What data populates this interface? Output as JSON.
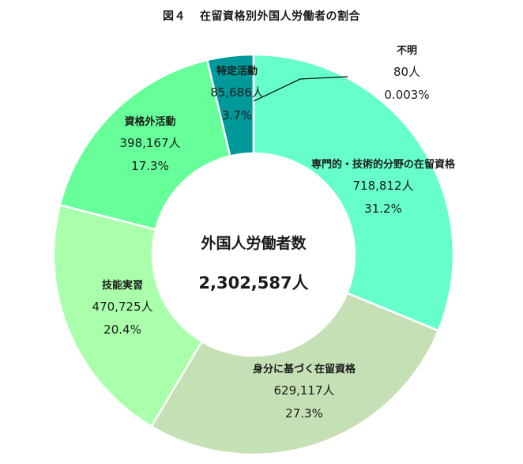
{
  "title": {
    "fig": "図４",
    "text": "在留資格別外国人労働者の割合"
  },
  "center": {
    "label": "外国人労働者数",
    "total": "2,302,587人"
  },
  "segments": [
    {
      "name": "専門的・技術的分野の在留資格",
      "count": "718,812人",
      "pct": "31.2%",
      "color": "#66FFCC"
    },
    {
      "name": "身分に基づく在留資格",
      "count": "629,117人",
      "pct": "27.3%",
      "color": "#C5E0B4"
    },
    {
      "name": "技能実習",
      "count": "470,725人",
      "pct": "20.4%",
      "color": "#AAFFAA"
    },
    {
      "name": "資格外活動",
      "count": "398,167人",
      "pct": "17.3%",
      "color": "#66FF99"
    },
    {
      "name": "特定活動",
      "count": "85,686人",
      "pct": "3.7%",
      "color": "#009999"
    },
    {
      "name": "不明",
      "count": "80人",
      "pct": "0.003%",
      "color": "#00B0B0"
    }
  ],
  "chart_data": {
    "type": "pie",
    "subtype": "donut",
    "title": "図４　在留資格別外国人労働者の割合",
    "center_text": [
      "外国人労働者数",
      "2,302,587人"
    ],
    "categories": [
      "専門的・技術的分野の在留資格",
      "身分に基づく在留資格",
      "技能実習",
      "資格外活動",
      "特定活動",
      "不明"
    ],
    "values": [
      718812,
      629117,
      470725,
      398167,
      85686,
      80
    ],
    "percentages": [
      31.2,
      27.3,
      20.4,
      17.3,
      3.7,
      0.003
    ],
    "total": 2302587,
    "unit": "人",
    "start_angle": "12 o'clock, clockwise",
    "legend": "none (data labels on segments)"
  }
}
